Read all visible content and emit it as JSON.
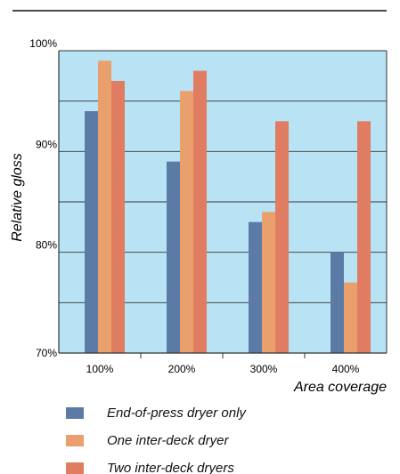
{
  "chart_data": {
    "type": "bar",
    "categories": [
      "100%",
      "200%",
      "300%",
      "400%"
    ],
    "series": [
      {
        "name": "End-of-press dryer only",
        "values": [
          94,
          89,
          83,
          80
        ]
      },
      {
        "name": "One inter-deck dryer",
        "values": [
          99,
          96,
          84,
          77
        ]
      },
      {
        "name": "Two inter-deck dryers",
        "values": [
          97,
          98,
          93,
          93
        ]
      }
    ],
    "ylabel": "Relative gloss",
    "xlabel": "Area coverage",
    "ylim": [
      70,
      100
    ],
    "yticks": [
      "100%",
      "90%",
      "80%",
      "70%"
    ],
    "grid": true,
    "legend_position": "bottom-left"
  },
  "colors": {
    "plot_background": "#b8e3f4",
    "series": [
      "#5c7aa6",
      "#e9a06c",
      "#e07c62"
    ],
    "axis": "#333333"
  }
}
